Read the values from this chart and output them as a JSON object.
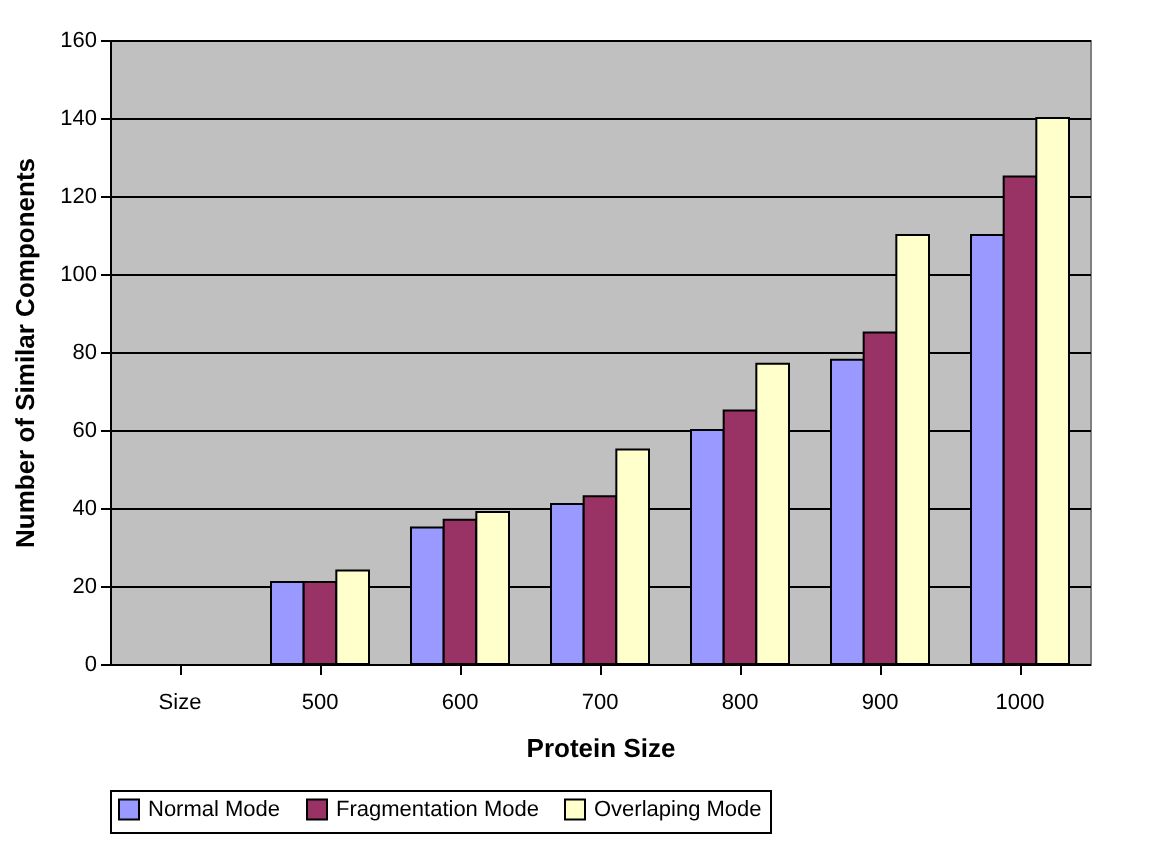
{
  "chart_data": {
    "type": "bar",
    "xlabel": "Protein Size",
    "ylabel": "Number of Similar Components",
    "categories": [
      "Size",
      "500",
      "600",
      "700",
      "800",
      "900",
      "1000"
    ],
    "series": [
      {
        "name": "Normal Mode",
        "color": "#9999ff",
        "values": [
          null,
          21,
          35,
          41,
          60,
          78,
          110
        ]
      },
      {
        "name": "Fragmentation Mode",
        "color": "#993366",
        "values": [
          null,
          21,
          37,
          43,
          65,
          85,
          125
        ]
      },
      {
        "name": "Overlaping Mode",
        "color": "#ffffcc",
        "values": [
          null,
          24,
          39,
          55,
          77,
          110,
          140
        ]
      }
    ],
    "ylim": [
      0,
      160
    ],
    "yticks": [
      0,
      20,
      40,
      60,
      80,
      100,
      120,
      140,
      160
    ],
    "grid": "y",
    "legend": "bottom"
  }
}
